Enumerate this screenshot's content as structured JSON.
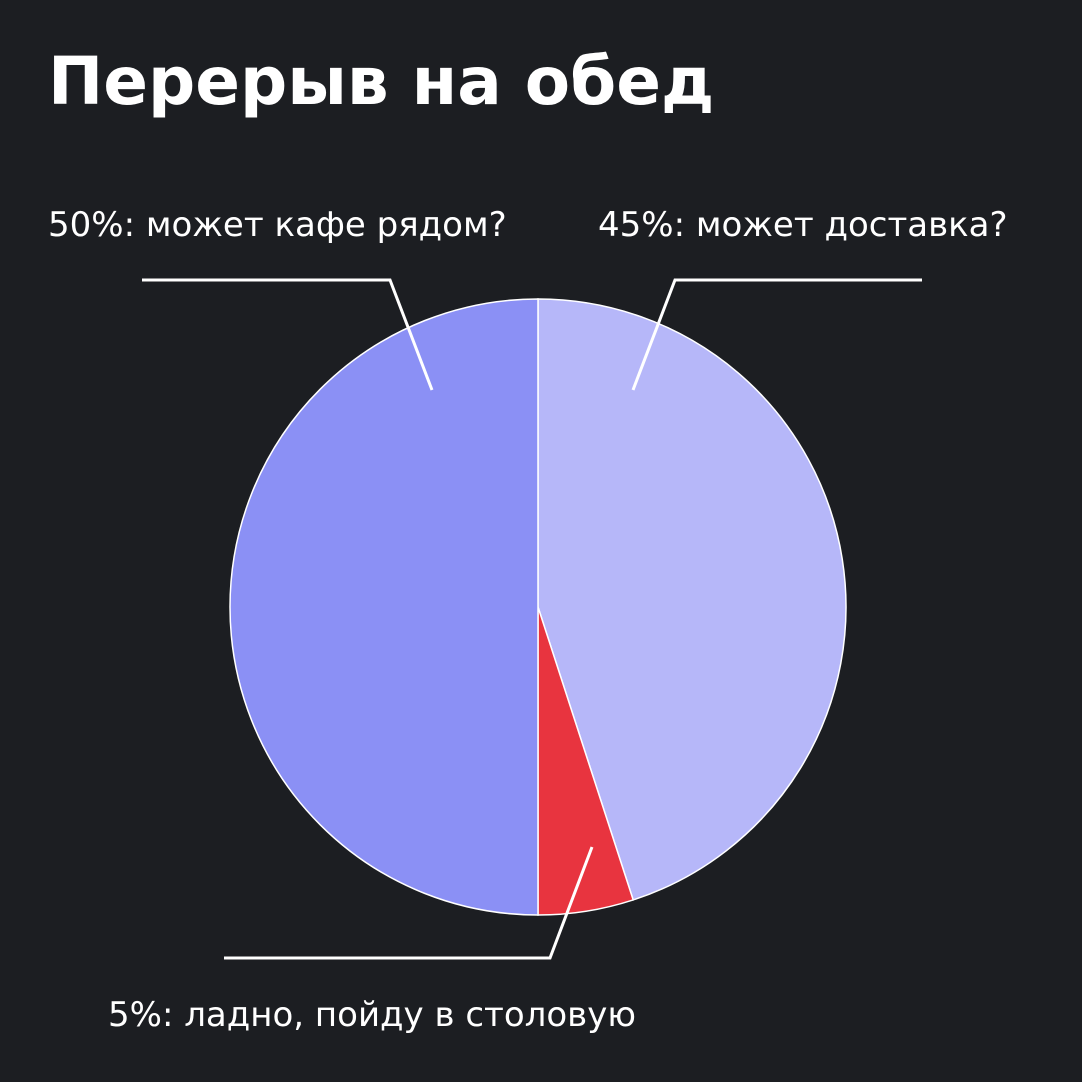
{
  "chart_data": {
    "type": "pie",
    "title": "Перерыв на обед",
    "categories": [
      "45%: может доставка?",
      "5%: ладно, пойду в столовую",
      "50%: может кафе рядом?"
    ],
    "values": [
      45,
      5,
      50
    ],
    "colors": [
      "#b6b7f9",
      "#e8343f",
      "#8b90f5"
    ]
  }
}
